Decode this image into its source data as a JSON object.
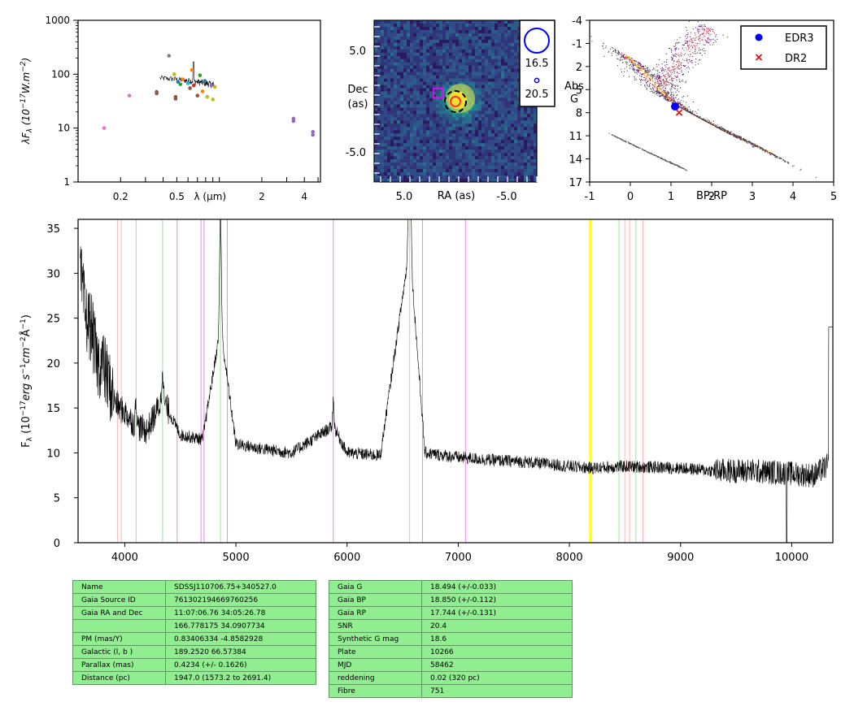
{
  "chart_data": [
    {
      "type": "scatter",
      "panel": "sed",
      "ylabel": "λF_λ (10^-17 W.m^-2)",
      "xlabel": "λ (μm)",
      "x_scale": "log",
      "y_scale": "log",
      "xlim": [
        0.1,
        5.2
      ],
      "ylim": [
        1,
        1000
      ],
      "xticks": [
        "0.2",
        "0.5",
        "λ (μm)",
        "2",
        "4"
      ],
      "yticks": [
        "1",
        "10",
        "100",
        "1000"
      ],
      "points": [
        {
          "x": 0.153,
          "y": 10,
          "color": "#e377c2"
        },
        {
          "x": 0.231,
          "y": 40,
          "color": "#e377c2"
        },
        {
          "x": 0.36,
          "y": 44,
          "color": "#8c564b"
        },
        {
          "x": 0.36,
          "y": 47,
          "color": "#8c564b"
        },
        {
          "x": 0.44,
          "y": 220,
          "color": "#7f7f7f"
        },
        {
          "x": 0.48,
          "y": 100,
          "color": "#bcbd22"
        },
        {
          "x": 0.49,
          "y": 35,
          "color": "#8c564b"
        },
        {
          "x": 0.49,
          "y": 38,
          "color": "#8c564b"
        },
        {
          "x": 0.51,
          "y": 72,
          "color": "#1f77b4"
        },
        {
          "x": 0.53,
          "y": 65,
          "color": "#2ca02c"
        },
        {
          "x": 0.55,
          "y": 80,
          "color": "#ff7f0e"
        },
        {
          "x": 0.6,
          "y": 68,
          "color": "#17becf"
        },
        {
          "x": 0.62,
          "y": 55,
          "color": "#8c564b"
        },
        {
          "x": 0.64,
          "y": 120,
          "color": "#ff7f0e"
        },
        {
          "x": 0.66,
          "y": 62,
          "color": "#d62728"
        },
        {
          "x": 0.7,
          "y": 40,
          "color": "#8c564b"
        },
        {
          "x": 0.73,
          "y": 95,
          "color": "#2ca02c"
        },
        {
          "x": 0.76,
          "y": 48,
          "color": "#ff7f0e"
        },
        {
          "x": 0.79,
          "y": 75,
          "color": "#1f77b4"
        },
        {
          "x": 0.82,
          "y": 38,
          "color": "#bcbd22"
        },
        {
          "x": 0.88,
          "y": 62,
          "color": "#9467bd"
        },
        {
          "x": 0.9,
          "y": 34,
          "color": "#bcbd22"
        },
        {
          "x": 0.93,
          "y": 58,
          "color": "#bcbd22"
        },
        {
          "x": 3.35,
          "y": 15,
          "color": "#9467bd"
        },
        {
          "x": 3.35,
          "y": 13.5,
          "color": "#9467bd"
        },
        {
          "x": 4.6,
          "y": 8.5,
          "color": "#9467bd"
        },
        {
          "x": 4.6,
          "y": 7.5,
          "color": "#9467bd"
        }
      ]
    },
    {
      "type": "heatmap",
      "panel": "image",
      "xlabel": "RA (as)",
      "ylabel": "Dec (as)",
      "xticks": [
        "5.0",
        "-5.0"
      ],
      "yticks": [
        "5.0",
        "-5.0"
      ],
      "legend_labels": [
        "16.5",
        "20.5"
      ]
    },
    {
      "type": "scatter",
      "panel": "hr",
      "xlabel": "BP-RP",
      "ylabel": "Abs G",
      "xlim": [
        -1,
        5
      ],
      "ylim": [
        17,
        -4
      ],
      "xticks": [
        "-1",
        "0",
        "1",
        "2",
        "3",
        "4",
        "5"
      ],
      "yticks": [
        "-4",
        "-1",
        "2",
        "5",
        "8",
        "11",
        "14",
        "17"
      ],
      "series": [
        {
          "name": "EDR3",
          "color": "#0000ff",
          "x": [
            1.1
          ],
          "y": [
            7.2
          ]
        },
        {
          "name": "DR2",
          "color": "#ff0000",
          "x": [
            1.2
          ],
          "y": [
            7.9
          ]
        }
      ]
    },
    {
      "type": "line",
      "panel": "spectrum",
      "ylabel": "F_λ (10^-17 erg s^-1 cm^-2 Å^-1)",
      "xlim": [
        3580,
        10370
      ],
      "ylim": [
        0,
        36
      ],
      "xticks": [
        "4000",
        "5000",
        "6000",
        "7000",
        "8000",
        "9000",
        "10000"
      ],
      "yticks": [
        "0",
        "5",
        "10",
        "15",
        "20",
        "25",
        "30",
        "35"
      ],
      "series": [
        {
          "name": "",
          "color": "#000000",
          "x": [
            3600,
            3650,
            3700,
            3750,
            3800,
            3850,
            3900,
            3950,
            4000,
            4100,
            4200,
            4340,
            4500,
            4700,
            4861,
            5000,
            5200,
            5500,
            5876,
            6000,
            6300,
            6563,
            6700,
            7000,
            7300,
            7600,
            8000,
            8200,
            8500,
            9000,
            9300,
            9600,
            9900,
            10200,
            10370
          ],
          "y": [
            30,
            25,
            24,
            20,
            20,
            18,
            16,
            15,
            14.5,
            13,
            12.5,
            16,
            12,
            11.5,
            24,
            11,
            10.5,
            10,
            13,
            10,
            9.7,
            33,
            10,
            9.5,
            9.2,
            9,
            8.5,
            8.3,
            8.5,
            8.3,
            8,
            8,
            7.8,
            7.5,
            9
          ]
        }
      ],
      "vlines": [
        {
          "x": 3934,
          "color": "#ffb6b6"
        },
        {
          "x": 3969,
          "color": "#ffb6b6"
        },
        {
          "x": 4102,
          "color": "#90ee90"
        },
        {
          "x": 4340,
          "color": "#90ee90"
        },
        {
          "x": 4471,
          "color": "#ee82ee"
        },
        {
          "x": 4686,
          "color": "#ee82ee"
        },
        {
          "x": 4713,
          "color": "#ee82ee"
        },
        {
          "x": 4861,
          "color": "#90ee90"
        },
        {
          "x": 4922,
          "color": "#ee82ee"
        },
        {
          "x": 5876,
          "color": "#ee82ee"
        },
        {
          "x": 6563,
          "color": "#90ee90"
        },
        {
          "x": 6678,
          "color": "#ee82ee"
        },
        {
          "x": 7065,
          "color": "#ee82ee"
        },
        {
          "x": 8183,
          "color": "#ffff00"
        },
        {
          "x": 8195,
          "color": "#ffff00"
        },
        {
          "x": 8446,
          "color": "#90ee90"
        },
        {
          "x": 8498,
          "color": "#ffb6b6"
        },
        {
          "x": 8542,
          "color": "#ffb6b6"
        },
        {
          "x": 8598,
          "color": "#90ee90"
        },
        {
          "x": 8662,
          "color": "#ffb6b6"
        }
      ]
    }
  ],
  "table_left": [
    [
      "Name",
      "SDSSJ110706.75+340527.0"
    ],
    [
      "Gaia Source ID",
      "761302194669760256"
    ],
    [
      "Gaia RA and Dec",
      "11:07:06.76    34:05:26.78"
    ],
    [
      "",
      "166.778175    34.0907734"
    ],
    [
      "PM (mas/Y)",
      "0.83406334    -4.8582928"
    ],
    [
      "Galactic (l, b )",
      "189.2520    66.57384"
    ],
    [
      "Parallax (mas)",
      "0.4234 (+/- 0.1626)"
    ],
    [
      "Distance (pc)",
      "1947.0 (1573.2 to 2691.4)"
    ]
  ],
  "table_right": [
    [
      "Gaia G",
      "18.494 (+/-0.033)"
    ],
    [
      "Gaia BP",
      "18.850 (+/-0.112)"
    ],
    [
      "Gaia RP",
      "17.744 (+/-0.131)"
    ],
    [
      "SNR",
      "20.4"
    ],
    [
      "Synthetic G mag",
      "18.6"
    ],
    [
      "Plate",
      "10266"
    ],
    [
      "MJD",
      "58462"
    ],
    [
      "reddening",
      "0.02 (320 pc)"
    ],
    [
      "Fibre",
      "751"
    ]
  ]
}
